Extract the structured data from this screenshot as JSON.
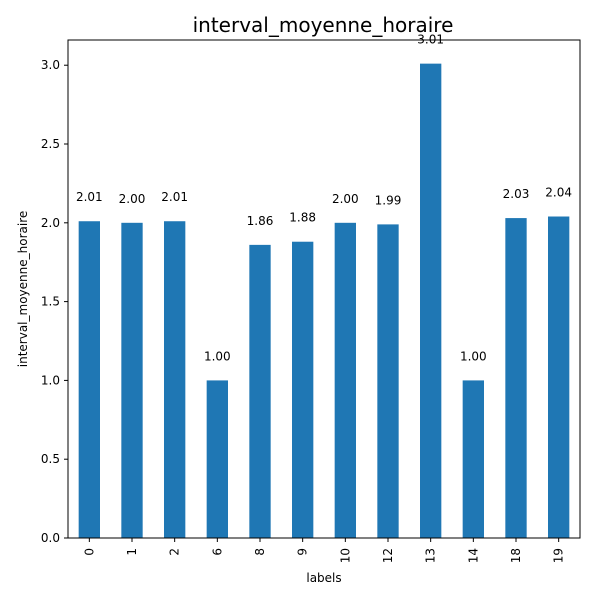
{
  "chart_data": {
    "type": "bar",
    "title": "interval_moyenne_horaire",
    "xlabel": "labels",
    "ylabel": "interval_moyenne_horaire",
    "categories": [
      "0",
      "1",
      "2",
      "6",
      "8",
      "9",
      "10",
      "12",
      "13",
      "14",
      "18",
      "19"
    ],
    "values": [
      2.01,
      2.0,
      2.01,
      1.0,
      1.86,
      1.88,
      2.0,
      1.99,
      3.01,
      1.0,
      2.03,
      2.04
    ],
    "data_labels": [
      "2.01",
      "2.00",
      "2.01",
      "1.00",
      "1.86",
      "1.88",
      "2.00",
      "1.99",
      "3.01",
      "1.00",
      "2.03",
      "2.04"
    ],
    "yticks": [
      "0.0",
      "0.5",
      "1.0",
      "1.5",
      "2.0",
      "2.5",
      "3.0"
    ],
    "ylim": [
      0,
      3.16
    ],
    "grid": false,
    "legend": "none",
    "bar_color": "#1f77b4"
  }
}
